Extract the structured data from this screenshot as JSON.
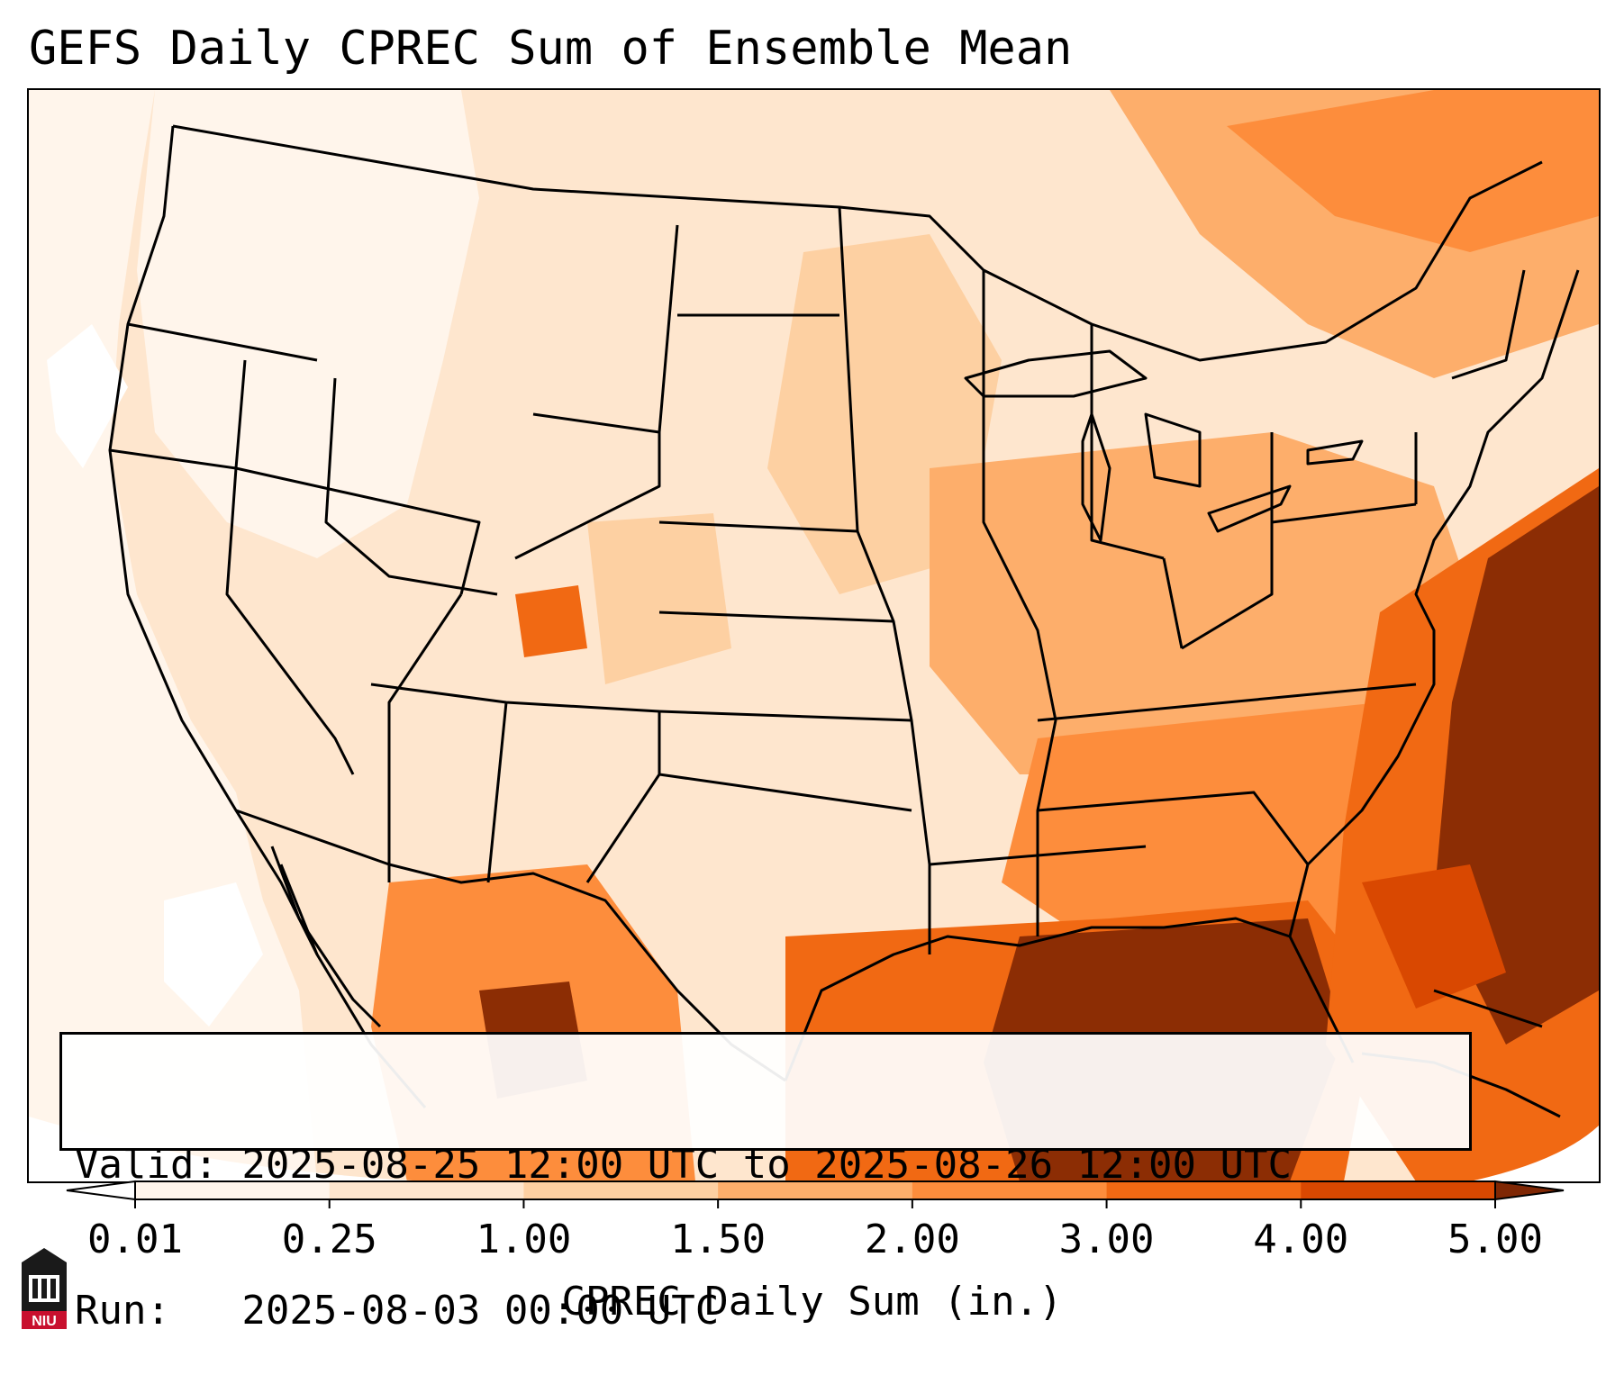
{
  "title": "GEFS Daily CPREC Sum of Ensemble Mean",
  "info": {
    "valid": "Valid: 2025-08-25 12:00 UTC to 2025-08-26 12:00 UTC",
    "run": "Run:   2025-08-03 00:00 UTC"
  },
  "colorbar": {
    "label": "CPREC Daily Sum (in.)",
    "ticks": [
      "0.01",
      "0.25",
      "1.00",
      "1.50",
      "2.00",
      "3.00",
      "4.00",
      "5.00"
    ],
    "colors": [
      "#fff5eb",
      "#fee6ce",
      "#fdd0a2",
      "#fdae6b",
      "#fd8d3c",
      "#f16913",
      "#d94801",
      "#8c2d04"
    ],
    "under_color": "#ffffff",
    "over_color": "#7f2704"
  },
  "logo": {
    "text": "NIU",
    "colors": {
      "tower": "#1a1a1a",
      "band": "#c8102e"
    }
  }
}
